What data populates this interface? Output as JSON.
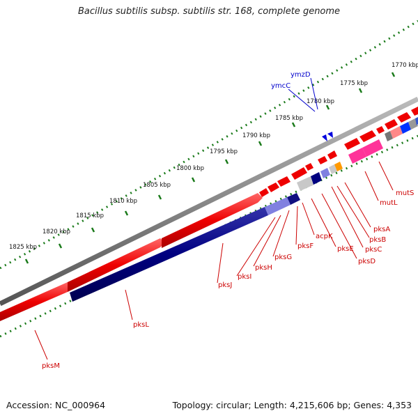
{
  "title": "Bacillus subtilis subsp. subtilis str. 168, complete genome",
  "footer": {
    "accession": "Accession: NC_000964",
    "stats": "Topology: circular; Length: 4,215,606 bp; Genes: 4,353"
  },
  "ruler_labels": [
    "1770 kbp",
    "1775 kbp",
    "1780 kbp",
    "1785 kbp",
    "1790 kbp",
    "1795 kbp",
    "1800 kbp",
    "1805 kbp",
    "1810 kbp",
    "1815 kbp",
    "1820 kbp",
    "1825 kbp"
  ],
  "gene_labels": [
    {
      "text": "ymzD",
      "color": "blue"
    },
    {
      "text": "ymcC",
      "color": "blue"
    },
    {
      "text": "mutS",
      "color": "red"
    },
    {
      "text": "mutL",
      "color": "red"
    },
    {
      "text": "pksA",
      "color": "red"
    },
    {
      "text": "pksB",
      "color": "red"
    },
    {
      "text": "pksC",
      "color": "red"
    },
    {
      "text": "pksD",
      "color": "red"
    },
    {
      "text": "pksE",
      "color": "red"
    },
    {
      "text": "acpK",
      "color": "red"
    },
    {
      "text": "pksF",
      "color": "red"
    },
    {
      "text": "pksG",
      "color": "red"
    },
    {
      "text": "pksH",
      "color": "red"
    },
    {
      "text": "pksI",
      "color": "red"
    },
    {
      "text": "pksJ",
      "color": "red"
    },
    {
      "text": "pksL",
      "color": "red"
    },
    {
      "text": "pksM",
      "color": "red"
    }
  ],
  "colors": {
    "backbone": "#888888",
    "forward_cds": "#ee0000",
    "reverse_cds": "#000080",
    "pks_light": "#8080e0",
    "rna_pink": "#ff3399",
    "ruler": "#1a7a1a",
    "label_red": "#cc0000",
    "label_blue": "#0000cc"
  }
}
